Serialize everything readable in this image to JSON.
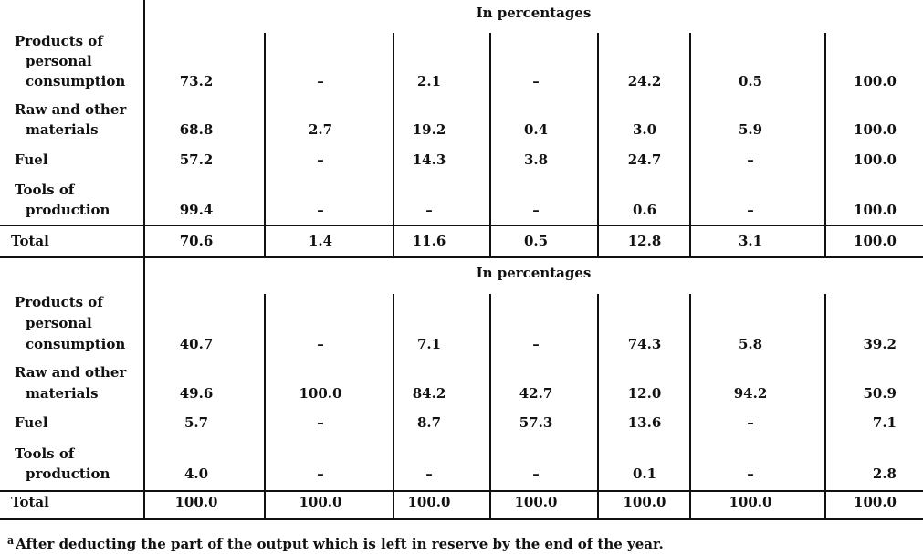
{
  "sections": [
    {
      "heading": "In percentages",
      "rows": [
        {
          "label": [
            "Products of",
            "personal",
            "consumption"
          ],
          "values": [
            "73.2",
            "–",
            "2.1",
            "–",
            "24.2",
            "0.5",
            "100.0"
          ]
        },
        {
          "label": [
            "Raw and other",
            "materials"
          ],
          "values": [
            "68.8",
            "2.7",
            "19.2",
            "0.4",
            "3.0",
            "5.9",
            "100.0"
          ]
        },
        {
          "label": [
            "Fuel"
          ],
          "values": [
            "57.2",
            "–",
            "14.3",
            "3.8",
            "24.7",
            "–",
            "100.0"
          ]
        },
        {
          "label": [
            "Tools of",
            "production"
          ],
          "values": [
            "99.4",
            "–",
            "–",
            "–",
            "0.6",
            "–",
            "100.0"
          ]
        }
      ],
      "total": {
        "label": "Total",
        "values": [
          "70.6",
          "1.4",
          "11.6",
          "0.5",
          "12.8",
          "3.1",
          "100.0"
        ]
      }
    },
    {
      "heading": "In percentages",
      "rows": [
        {
          "label": [
            "Products of",
            "personal",
            "consumption"
          ],
          "values": [
            "40.7",
            "–",
            "7.1",
            "–",
            "74.3",
            "5.8",
            "39.2"
          ]
        },
        {
          "label": [
            "Raw and other",
            "materials"
          ],
          "values": [
            "49.6",
            "100.0",
            "84.2",
            "42.7",
            "12.0",
            "94.2",
            "50.9"
          ]
        },
        {
          "label": [
            "Fuel"
          ],
          "values": [
            "5.7",
            "–",
            "8.7",
            "57.3",
            "13.6",
            "–",
            "7.1"
          ]
        },
        {
          "label": [
            "Tools of",
            "production"
          ],
          "values": [
            "4.0",
            "–",
            "–",
            "–",
            "0.1",
            "–",
            "2.8"
          ]
        }
      ],
      "total": {
        "label": "Total",
        "values": [
          "100.0",
          "100.0",
          "100.0",
          "100.0",
          "100.0",
          "100.0",
          "100.0"
        ]
      }
    }
  ],
  "footnote": {
    "marker": "a",
    "text": "After deducting the part of the output which is left in reserve by the end of the year."
  }
}
